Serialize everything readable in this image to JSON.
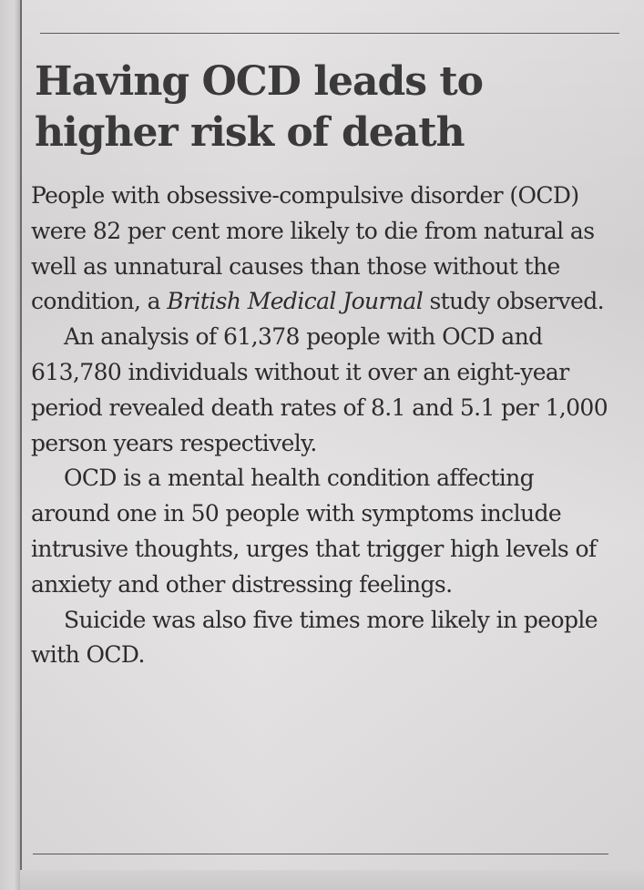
{
  "article": {
    "headline": "Having OCD leads to higher risk of death",
    "paragraphs": [
      {
        "before": "People with obsessive-compulsive disorder (OCD) were 82 per cent more likely to die from natural as well as unnatural causes than those without the condition, a ",
        "italic": "British Medical Journal",
        "after": " study observed."
      },
      {
        "text": "An analysis of 61,378 people with OCD and 613,780 individuals without it over an eight-year period revealed death rates of 8.1 and 5.1 per 1,000 person years respectively."
      },
      {
        "text": "OCD is a mental health condition affecting around one in 50 people with symptoms include intrusive thoughts, urges that trigger high levels of anxiety and other distressing feelings."
      },
      {
        "text": "Suicide was also five times more likely in people with OCD."
      }
    ]
  },
  "colors": {
    "paper": "#e0dede",
    "ink": "#2c2c2c",
    "rule": "#5a5a5a"
  }
}
